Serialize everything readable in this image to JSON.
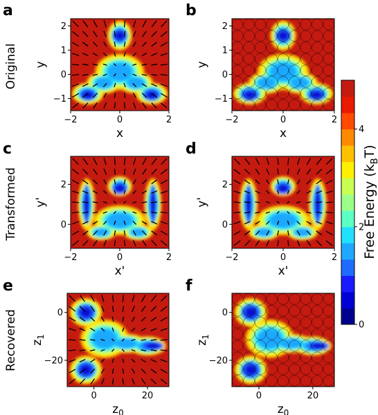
{
  "figure": {
    "row_labels": [
      "Original",
      "Transformed",
      "Recovered"
    ],
    "panel_letters": [
      "a",
      "b",
      "c",
      "d",
      "e",
      "f"
    ]
  },
  "chart_data": [
    {
      "type": "heatmap",
      "panel": "a",
      "xlabel": "x",
      "ylabel": "y",
      "xlim": [
        -2,
        2
      ],
      "ylim": [
        -1.5,
        2.3
      ],
      "xticks": [
        -2,
        0,
        2
      ],
      "yticks": [
        -1,
        0,
        1,
        2
      ],
      "overlay": "arrows"
    },
    {
      "type": "heatmap",
      "panel": "b",
      "xlabel": "x",
      "ylabel": "y",
      "xlim": [
        -2,
        2
      ],
      "ylim": [
        -1.5,
        2.3
      ],
      "xticks": [
        -2,
        0,
        2
      ],
      "yticks": [
        -1,
        0,
        1,
        2
      ],
      "overlay": "circles"
    },
    {
      "type": "heatmap",
      "panel": "c",
      "xlabel": "x'",
      "ylabel": "y'",
      "xlim": [
        -2,
        2
      ],
      "ylim": [
        -1.2,
        3.4
      ],
      "xticks": [
        -2,
        0,
        2
      ],
      "yticks": [
        0,
        2
      ],
      "overlay": "arrows"
    },
    {
      "type": "heatmap",
      "panel": "d",
      "xlabel": "x'",
      "ylabel": "y'",
      "xlim": [
        -2,
        2
      ],
      "ylim": [
        -1.2,
        3.4
      ],
      "xticks": [
        -2,
        0,
        2
      ],
      "yticks": [
        0,
        2
      ],
      "overlay": "arrows"
    },
    {
      "type": "heatmap",
      "panel": "e",
      "xlabel": "z0",
      "ylabel": "z1",
      "xlim": [
        -10,
        28
      ],
      "ylim": [
        -31,
        8
      ],
      "xticks": [
        0,
        20
      ],
      "yticks": [
        -20,
        0
      ],
      "overlay": "arrows"
    },
    {
      "type": "heatmap",
      "panel": "f",
      "xlabel": "z0",
      "ylabel": "z1",
      "xlim": [
        -10,
        28
      ],
      "ylim": [
        -31,
        8
      ],
      "xticks": [
        0,
        20
      ],
      "yticks": [
        -20,
        0
      ],
      "overlay": "circles"
    }
  ],
  "colorbar": {
    "label": "Free Energy (k",
    "label_sub": "B",
    "label_end": "T)",
    "min": 0,
    "max": 5,
    "ticks": [
      0,
      2,
      4
    ],
    "colors": [
      "#00008f",
      "#0000d4",
      "#1a1aff",
      "#1e6cff",
      "#1ea8ff",
      "#22e0ff",
      "#5cffc4",
      "#9cff8a",
      "#c8ff50",
      "#fff000",
      "#ffc000",
      "#ff8a00",
      "#ff4a00",
      "#e81a00",
      "#c41a10"
    ]
  }
}
